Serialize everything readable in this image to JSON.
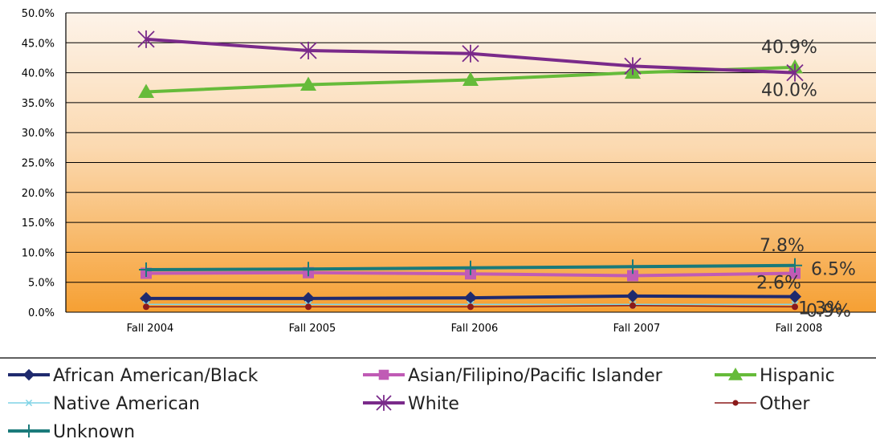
{
  "chart_data": {
    "type": "line",
    "categories": [
      "Fall 2004",
      "Fall 2005",
      "Fall 2006",
      "Fall 2007",
      "Fall 2008"
    ],
    "ylim": [
      0,
      50
    ],
    "yticks": [
      "0.0%",
      "5.0%",
      "10.0%",
      "15.0%",
      "20.0%",
      "25.0%",
      "30.0%",
      "35.0%",
      "40.0%",
      "45.0%",
      "50.0%"
    ],
    "grid": true,
    "legend_position": "bottom",
    "series": [
      {
        "name": "African American/Black",
        "color": "#1f2a6e",
        "marker": "diamond",
        "values": [
          2.3,
          2.3,
          2.4,
          2.7,
          2.6
        ]
      },
      {
        "name": "Asian/Filipino/Pacific Islander",
        "color": "#c05bb5",
        "marker": "square",
        "values": [
          6.5,
          6.6,
          6.4,
          6.1,
          6.5
        ]
      },
      {
        "name": "Hispanic",
        "color": "#66bb3a",
        "marker": "triangle",
        "values": [
          36.8,
          38.0,
          38.8,
          40.0,
          40.9
        ]
      },
      {
        "name": "Native American",
        "color": "#7fd4e6",
        "marker": "x",
        "values": [
          1.3,
          1.3,
          1.3,
          1.3,
          1.3
        ]
      },
      {
        "name": "White",
        "color": "#7a2a8a",
        "marker": "star",
        "values": [
          45.6,
          43.7,
          43.2,
          41.1,
          40.0
        ]
      },
      {
        "name": "Other",
        "color": "#8b1a1a",
        "marker": "dot",
        "values": [
          0.9,
          0.9,
          0.9,
          1.1,
          0.9
        ]
      },
      {
        "name": "Unknown",
        "color": "#1a7a7a",
        "marker": "plus",
        "values": [
          7.1,
          7.2,
          7.4,
          7.6,
          7.8
        ]
      }
    ],
    "annotations": [
      {
        "text": "40.9%",
        "series": "Hispanic",
        "x": "Fall 2008",
        "y": 40.9
      },
      {
        "text": "40.0%",
        "series": "White",
        "x": "Fall 2008",
        "y": 40.0
      },
      {
        "text": "7.8%",
        "series": "Unknown",
        "x": "Fall 2008",
        "y": 7.8
      },
      {
        "text": "6.5%",
        "series": "Asian/Filipino/Pacific Islander",
        "x": "Fall 2008",
        "y": 6.5
      },
      {
        "text": "2.6%",
        "series": "African American/Black",
        "x": "Fall 2008",
        "y": 2.6
      },
      {
        "text": "1.3%",
        "series": "Native American",
        "x": "Fall 2008",
        "y": 1.3
      },
      {
        "text": "0.9%",
        "series": "Other",
        "x": "Fall 2008",
        "y": 0.9
      }
    ]
  }
}
